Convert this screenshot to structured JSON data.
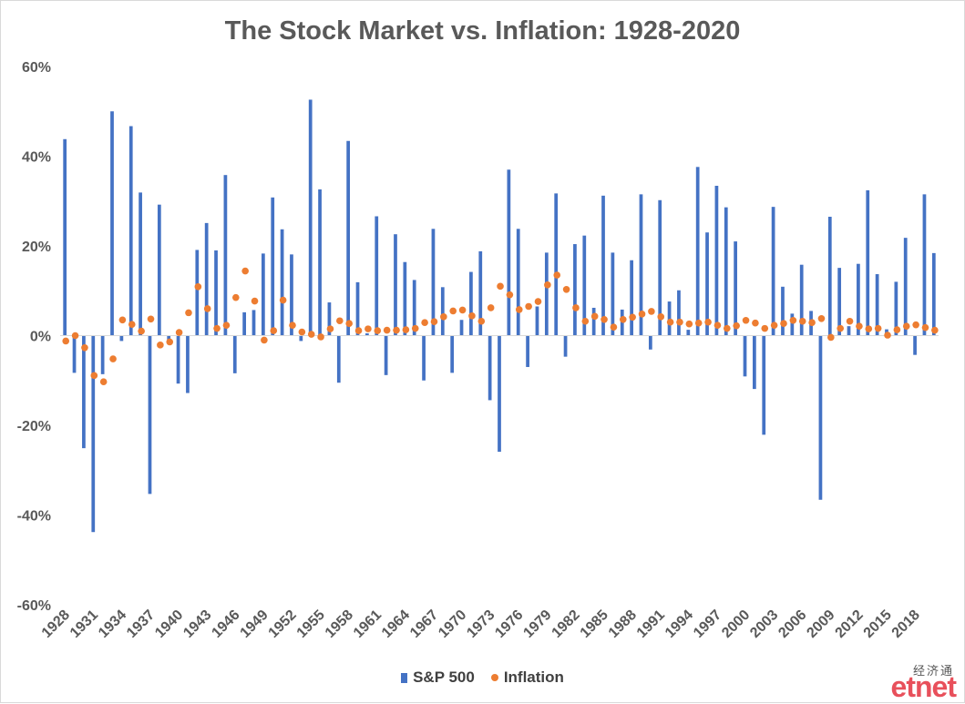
{
  "chart_data": {
    "type": "bar",
    "title": "The Stock Market vs. Inflation: 1928-2020",
    "xlabel": "",
    "ylabel": "",
    "ylim": [
      -0.6,
      0.6
    ],
    "y_tick_values": [
      0.6,
      0.4,
      0.2,
      0.0,
      -0.2,
      -0.4,
      -0.6
    ],
    "y_tick_labels": [
      "60%",
      "40%",
      "20%",
      "0%",
      "-20%",
      "-40%",
      "-60%"
    ],
    "grid": false,
    "legend_position": "bottom",
    "categories": [
      "1928",
      "1929",
      "1930",
      "1931",
      "1932",
      "1933",
      "1934",
      "1935",
      "1936",
      "1937",
      "1938",
      "1939",
      "1940",
      "1941",
      "1942",
      "1943",
      "1944",
      "1945",
      "1946",
      "1947",
      "1948",
      "1949",
      "1950",
      "1951",
      "1952",
      "1953",
      "1954",
      "1955",
      "1956",
      "1957",
      "1958",
      "1959",
      "1960",
      "1961",
      "1962",
      "1963",
      "1964",
      "1965",
      "1966",
      "1967",
      "1968",
      "1969",
      "1970",
      "1971",
      "1972",
      "1973",
      "1974",
      "1975",
      "1976",
      "1977",
      "1978",
      "1979",
      "1980",
      "1981",
      "1982",
      "1983",
      "1984",
      "1985",
      "1986",
      "1987",
      "1988",
      "1989",
      "1990",
      "1991",
      "1992",
      "1993",
      "1994",
      "1995",
      "1996",
      "1997",
      "1998",
      "1999",
      "2000",
      "2001",
      "2002",
      "2003",
      "2004",
      "2005",
      "2006",
      "2007",
      "2008",
      "2009",
      "2010",
      "2011",
      "2012",
      "2013",
      "2014",
      "2015",
      "2016",
      "2017",
      "2018",
      "2019",
      "2020"
    ],
    "x_tick_labels": [
      "1928",
      "1931",
      "1934",
      "1937",
      "1940",
      "1943",
      "1946",
      "1949",
      "1952",
      "1955",
      "1958",
      "1961",
      "1964",
      "1967",
      "1970",
      "1973",
      "1976",
      "1979",
      "1982",
      "1985",
      "1988",
      "1991",
      "1994",
      "1997",
      "2000",
      "2003",
      "2006",
      "2009",
      "2012",
      "2015",
      "2018"
    ],
    "series": [
      {
        "name": "S&P 500",
        "type": "bar",
        "color": "#4472c4",
        "values": [
          0.438,
          -0.083,
          -0.251,
          -0.438,
          -0.086,
          0.5,
          -0.012,
          0.467,
          0.319,
          -0.353,
          0.292,
          -0.011,
          -0.107,
          -0.128,
          0.191,
          0.251,
          0.19,
          0.358,
          -0.084,
          0.052,
          0.057,
          0.183,
          0.308,
          0.237,
          0.181,
          -0.012,
          0.526,
          0.326,
          0.074,
          -0.105,
          0.434,
          0.119,
          0.005,
          0.266,
          -0.088,
          0.226,
          0.164,
          0.124,
          -0.1,
          0.238,
          0.108,
          -0.083,
          0.035,
          0.142,
          0.188,
          -0.144,
          -0.259,
          0.37,
          0.238,
          -0.07,
          0.065,
          0.185,
          0.317,
          -0.047,
          0.204,
          0.223,
          0.062,
          0.312,
          0.185,
          0.058,
          0.168,
          0.315,
          -0.031,
          0.302,
          0.076,
          0.101,
          0.013,
          0.376,
          0.23,
          0.334,
          0.286,
          0.21,
          -0.091,
          -0.119,
          -0.221,
          0.287,
          0.109,
          0.049,
          0.158,
          0.055,
          -0.366,
          0.265,
          0.151,
          0.021,
          0.16,
          0.324,
          0.137,
          0.014,
          0.12,
          0.218,
          -0.043,
          0.315,
          0.184
        ]
      },
      {
        "name": "Inflation",
        "type": "scatter",
        "color": "#ed7d31",
        "values": [
          -0.012,
          0.0,
          -0.027,
          -0.089,
          -0.103,
          -0.052,
          0.035,
          0.025,
          0.01,
          0.037,
          -0.021,
          -0.014,
          0.007,
          0.051,
          0.109,
          0.06,
          0.016,
          0.023,
          0.085,
          0.144,
          0.077,
          -0.01,
          0.011,
          0.079,
          0.023,
          0.008,
          0.003,
          -0.003,
          0.015,
          0.033,
          0.027,
          0.011,
          0.015,
          0.011,
          0.012,
          0.012,
          0.013,
          0.016,
          0.029,
          0.031,
          0.042,
          0.055,
          0.057,
          0.044,
          0.032,
          0.062,
          0.11,
          0.091,
          0.058,
          0.065,
          0.076,
          0.113,
          0.135,
          0.103,
          0.062,
          0.032,
          0.043,
          0.036,
          0.019,
          0.036,
          0.041,
          0.048,
          0.054,
          0.042,
          0.03,
          0.03,
          0.026,
          0.028,
          0.03,
          0.023,
          0.016,
          0.022,
          0.034,
          0.028,
          0.016,
          0.023,
          0.027,
          0.034,
          0.032,
          0.029,
          0.038,
          -0.004,
          0.016,
          0.032,
          0.021,
          0.015,
          0.016,
          0.001,
          0.013,
          0.021,
          0.024,
          0.018,
          0.012
        ]
      }
    ]
  },
  "legend": {
    "items": [
      {
        "label": "S&P 500"
      },
      {
        "label": "Inflation"
      }
    ]
  },
  "watermark": {
    "chinese": "经济通",
    "latin": "etnet"
  }
}
